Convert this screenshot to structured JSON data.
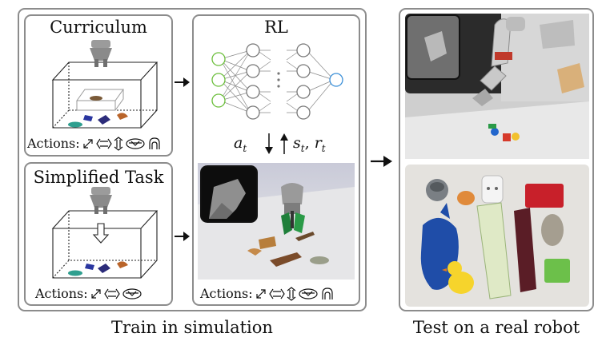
{
  "sim": {
    "caption": "Train in simulation",
    "curriculum": {
      "title": "Curriculum",
      "actions_label": "Actions:"
    },
    "simplified": {
      "title": "Simplified Task",
      "actions_label": "Actions:"
    },
    "rl": {
      "title": "RL",
      "action_symbol": "a",
      "action_subscript": "t",
      "obs_symbol": "s",
      "obs_subscript": "t",
      "reward_symbol": "r",
      "reward_subscript": "t",
      "actions_label": "Actions:"
    }
  },
  "real": {
    "caption": "Test on a real robot"
  },
  "colors": {
    "panel_border": "#8c8c8c",
    "input_node": "#6cbf3c",
    "output_node": "#3a8fd8",
    "arrow": "#111111"
  },
  "icons": [
    "diagonal-move-icon",
    "horizontal-move-icon",
    "vertical-move-icon",
    "rotate-gripper-icon",
    "grasp-icon"
  ]
}
